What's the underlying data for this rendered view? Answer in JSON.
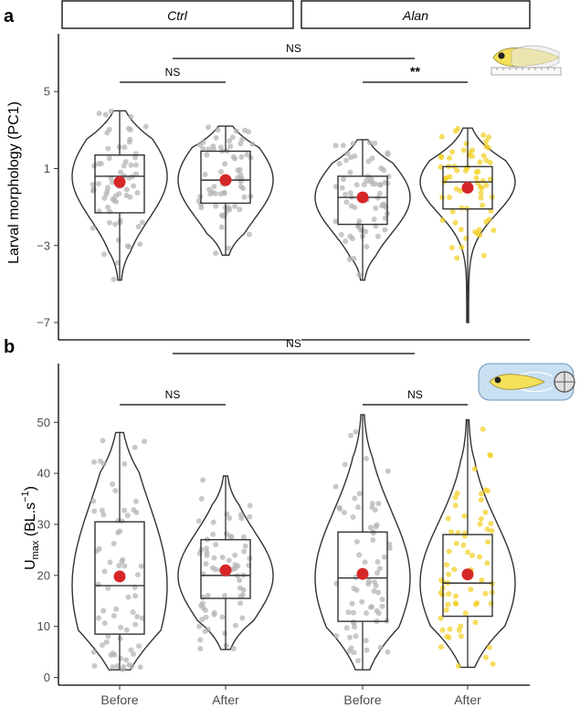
{
  "chart_data": [
    {
      "panel": "a",
      "type": "violin",
      "ylabel": "Larval morphology (PC1)",
      "ylim": [
        -7.9,
        8.0
      ],
      "yticks": [
        5,
        1,
        -3,
        -7
      ],
      "facets": [
        "Ctrl",
        "Alan"
      ],
      "categories": [
        "Before",
        "After"
      ],
      "groups": [
        {
          "facet": "Ctrl",
          "category": "Before",
          "min": -4.8,
          "max": 4.0,
          "q1": -1.3,
          "median": 0.6,
          "q3": 1.7,
          "mean": 0.3,
          "color": "#b3b3b3"
        },
        {
          "facet": "Ctrl",
          "category": "After",
          "min": -3.5,
          "max": 3.2,
          "q1": -0.8,
          "median": 0.4,
          "q3": 1.9,
          "mean": 0.4,
          "color": "#b3b3b3"
        },
        {
          "facet": "Alan",
          "category": "Before",
          "min": -4.8,
          "max": 2.5,
          "q1": -1.9,
          "median": -0.5,
          "q3": 0.6,
          "mean": -0.5,
          "color": "#b3b3b3"
        },
        {
          "facet": "Alan",
          "category": "After",
          "min": -7.0,
          "max": 3.1,
          "q1": -1.1,
          "median": 0.3,
          "q3": 1.1,
          "mean": 0.0,
          "color": "#f2d024"
        }
      ],
      "significance": [
        {
          "label": "NS",
          "from": "Ctrl-Before",
          "to": "Ctrl-After"
        },
        {
          "label": "**",
          "from": "Alan-Before",
          "to": "Alan-After"
        },
        {
          "label": "NS",
          "from": "Ctrl",
          "to": "Alan"
        }
      ]
    },
    {
      "panel": "b",
      "type": "violin",
      "ylabel": "U_max (BL.s^-1)",
      "ylabel_main": "U",
      "ylabel_sub": "max",
      "ylabel_rest": " (BL.s",
      "ylabel_sup": "−1",
      "ylabel_end": ")",
      "ylim": [
        -1.5,
        61.5
      ],
      "yticks": [
        0,
        10,
        20,
        30,
        40,
        50
      ],
      "categories": [
        "Before",
        "After",
        "Before",
        "After"
      ],
      "groups": [
        {
          "facet": "Ctrl",
          "category": "Before",
          "min": 1.5,
          "max": 48.0,
          "q1": 8.5,
          "median": 18.0,
          "q3": 30.5,
          "mean": 19.8,
          "color": "#b3b3b3"
        },
        {
          "facet": "Ctrl",
          "category": "After",
          "min": 5.5,
          "max": 39.5,
          "q1": 15.5,
          "median": 20.0,
          "q3": 27.0,
          "mean": 21.0,
          "color": "#b3b3b3"
        },
        {
          "facet": "Alan",
          "category": "Before",
          "min": 1.5,
          "max": 51.5,
          "q1": 11.0,
          "median": 19.5,
          "q3": 28.5,
          "mean": 20.3,
          "color": "#b3b3b3"
        },
        {
          "facet": "Alan",
          "category": "After",
          "min": 2.0,
          "max": 50.5,
          "q1": 12.0,
          "median": 18.5,
          "q3": 28.0,
          "mean": 20.2,
          "color": "#f2d024"
        }
      ],
      "significance": [
        {
          "label": "NS",
          "from": "Ctrl-Before",
          "to": "Ctrl-After"
        },
        {
          "label": "NS",
          "from": "Alan-Before",
          "to": "Alan-After"
        },
        {
          "label": "NS",
          "from": "Ctrl",
          "to": "Alan"
        }
      ]
    }
  ],
  "mean_color": "#d62728"
}
